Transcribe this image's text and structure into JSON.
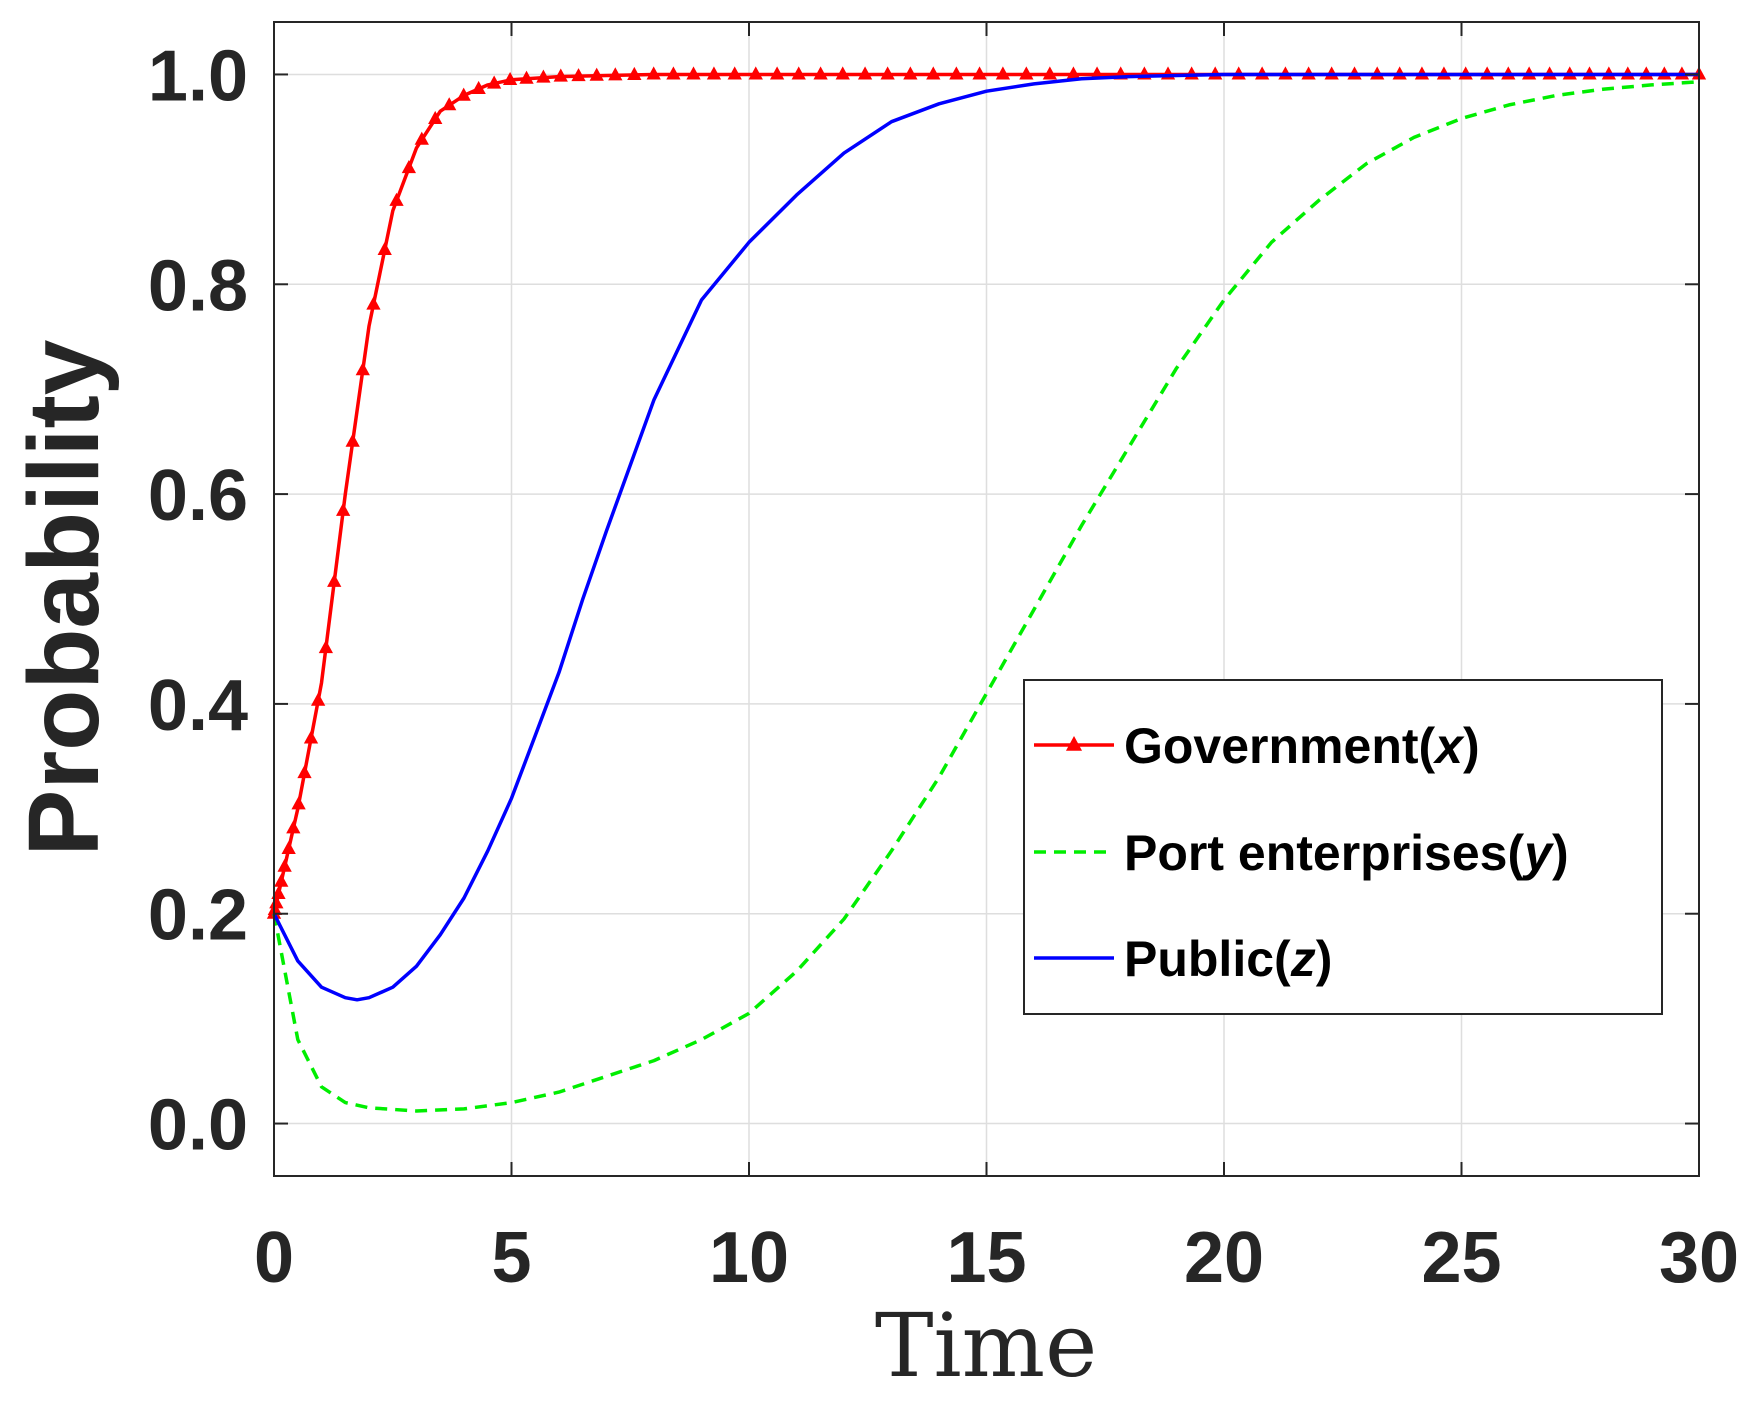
{
  "chart_data": {
    "type": "line",
    "xlabel": "Time",
    "ylabel": "Probability",
    "xlim": [
      0,
      30
    ],
    "ylim": [
      -0.05,
      1.05
    ],
    "xticks": [
      "0",
      "5",
      "10",
      "15",
      "20",
      "25",
      "30"
    ],
    "yticks": [
      "0.0",
      "0.2",
      "0.4",
      "0.6",
      "0.8",
      "1.0"
    ],
    "grid": true,
    "legend_position": "right-middle",
    "series": [
      {
        "name": "Government(x)",
        "name_prefix": "Government(",
        "name_var": "x",
        "name_suffix": ")",
        "color": "#ff0000",
        "style": "solid",
        "marker": "triangle",
        "x": [
          0,
          0.5,
          1,
          1.5,
          2,
          2.5,
          3,
          3.5,
          4,
          4.5,
          5,
          6,
          7,
          8,
          10,
          12,
          15,
          20,
          25,
          30
        ],
        "y": [
          0.2,
          0.3,
          0.42,
          0.6,
          0.76,
          0.87,
          0.93,
          0.965,
          0.98,
          0.99,
          0.995,
          0.998,
          0.999,
          1.0,
          1.0,
          1.0,
          1.0,
          1.0,
          1.0,
          1.0
        ]
      },
      {
        "name": "Port enterprises(y)",
        "name_prefix": "Port enterprises(",
        "name_var": "y",
        "name_suffix": ")",
        "color": "#00ee00",
        "style": "dashed",
        "marker": "none",
        "x": [
          0,
          0.5,
          1,
          1.5,
          2,
          3,
          4,
          5,
          6,
          7,
          8,
          9,
          10,
          11,
          12,
          13,
          14,
          15,
          16,
          17,
          18,
          19,
          20,
          21,
          22,
          23,
          24,
          25,
          26,
          27,
          28,
          29,
          30
        ],
        "y": [
          0.2,
          0.08,
          0.035,
          0.02,
          0.015,
          0.012,
          0.014,
          0.02,
          0.03,
          0.045,
          0.06,
          0.08,
          0.105,
          0.145,
          0.195,
          0.26,
          0.33,
          0.41,
          0.49,
          0.57,
          0.645,
          0.72,
          0.785,
          0.84,
          0.88,
          0.915,
          0.94,
          0.958,
          0.971,
          0.98,
          0.986,
          0.99,
          0.993
        ]
      },
      {
        "name": "Public(z)",
        "name_prefix": "Public(",
        "name_var": "z",
        "name_suffix": ")",
        "color": "#0000ff",
        "style": "solid",
        "marker": "none",
        "x": [
          0,
          0.5,
          1,
          1.5,
          1.75,
          2,
          2.5,
          3,
          3.5,
          4,
          4.5,
          5,
          5.5,
          6,
          6.5,
          7,
          8,
          9,
          10,
          11,
          12,
          13,
          14,
          15,
          16,
          17,
          18,
          19,
          20,
          25,
          30
        ],
        "y": [
          0.2,
          0.155,
          0.13,
          0.12,
          0.118,
          0.12,
          0.13,
          0.15,
          0.18,
          0.215,
          0.26,
          0.31,
          0.37,
          0.43,
          0.5,
          0.565,
          0.69,
          0.785,
          0.84,
          0.885,
          0.925,
          0.955,
          0.972,
          0.984,
          0.991,
          0.996,
          0.998,
          0.999,
          1.0,
          1.0,
          1.0
        ]
      }
    ]
  }
}
